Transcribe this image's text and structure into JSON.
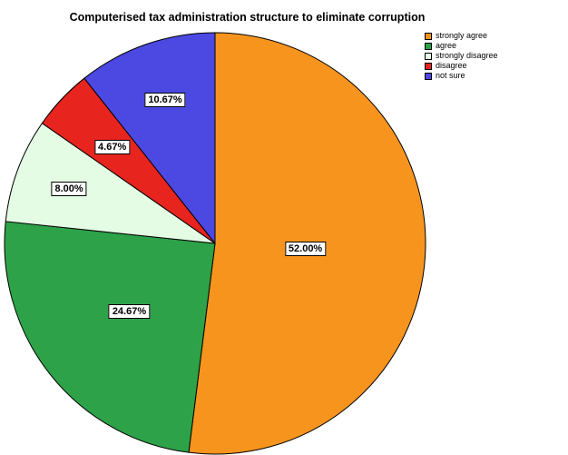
{
  "chart_data": {
    "type": "pie",
    "title": "Computerised tax administration structure to eliminate corruption",
    "categories": [
      "strongly agree",
      "agree",
      "strongly disagree",
      "disagree",
      "not sure"
    ],
    "values": [
      52.0,
      24.67,
      8.0,
      4.67,
      10.67
    ],
    "unit": "%",
    "slice_labels": [
      "52.00%",
      "24.67%",
      "8.00%",
      "4.67%",
      "10.67%"
    ],
    "colors": [
      "#F7941E",
      "#2DA248",
      "#E4FBE4",
      "#E8241F",
      "#4B49E1"
    ],
    "stroke_color": "#000000",
    "legend_position": "top-right",
    "start_angle": "top",
    "direction": "clockwise",
    "label_radius": [
      0.43,
      0.52,
      0.74,
      0.67,
      0.72
    ]
  }
}
